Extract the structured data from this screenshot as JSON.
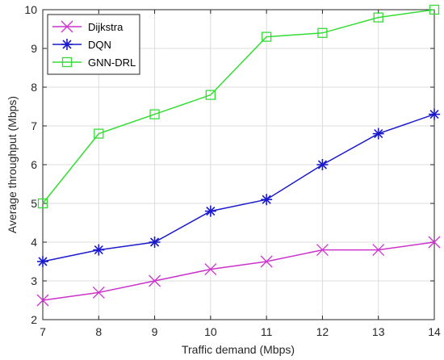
{
  "chart_data": {
    "type": "line",
    "xlabel": "Traffic demand (Mbps)",
    "ylabel": "Average throughput (Mbps)",
    "x": [
      7,
      8,
      9,
      10,
      11,
      12,
      13,
      14
    ],
    "xlim": [
      7,
      14
    ],
    "ylim": [
      2,
      10
    ],
    "xticks": [
      "7",
      "8",
      "9",
      "10",
      "11",
      "12",
      "13",
      "14"
    ],
    "yticks": [
      "2",
      "3",
      "4",
      "5",
      "6",
      "7",
      "8",
      "9",
      "10"
    ],
    "grid": true,
    "legend_position": "top-left",
    "series": [
      {
        "name": "Dijkstra",
        "color": "#cc33cc",
        "marker": "x",
        "values": [
          2.5,
          2.7,
          3.0,
          3.3,
          3.5,
          3.8,
          3.8,
          4.0
        ]
      },
      {
        "name": "DQN",
        "color": "#1a1acc",
        "marker": "asterisk",
        "values": [
          3.5,
          3.8,
          4.0,
          4.8,
          5.1,
          6.0,
          6.8,
          7.3
        ]
      },
      {
        "name": "GNN-DRL",
        "color": "#33dd33",
        "marker": "square",
        "values": [
          5.0,
          6.8,
          7.3,
          7.8,
          9.3,
          9.4,
          9.8,
          10.0
        ]
      }
    ]
  }
}
